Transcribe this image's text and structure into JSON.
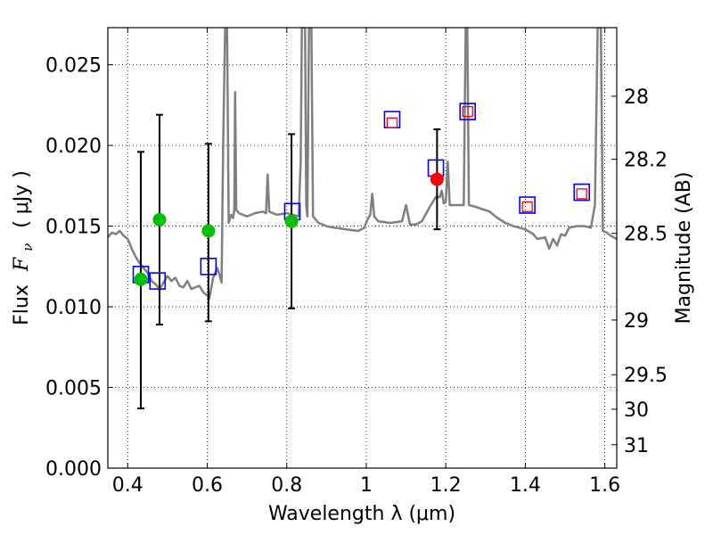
{
  "chart_data": {
    "type": "line",
    "title": "",
    "xlabel": "Wavelength  λ (μm)",
    "ylabel_parts": {
      "prefix": "Flux",
      "symbol": "F",
      "subscript": "ν",
      "unit": "( μJy )"
    },
    "y2label": "Magnitude (AB)",
    "xlim": [
      0.35,
      1.63
    ],
    "ylim": [
      0.0,
      0.0273
    ],
    "grid": true,
    "x_ticks": [
      {
        "value": 0.4,
        "label": "0.4"
      },
      {
        "value": 0.6,
        "label": "0.6"
      },
      {
        "value": 0.8,
        "label": "0.8"
      },
      {
        "value": 1.0,
        "label": "1"
      },
      {
        "value": 1.2,
        "label": "1.2"
      },
      {
        "value": 1.4,
        "label": "1.4"
      },
      {
        "value": 1.6,
        "label": "1.6"
      }
    ],
    "y_ticks": [
      {
        "value": 0.0,
        "label": "0.000"
      },
      {
        "value": 0.005,
        "label": "0.005"
      },
      {
        "value": 0.01,
        "label": "0.010"
      },
      {
        "value": 0.015,
        "label": "0.015"
      },
      {
        "value": 0.02,
        "label": "0.020"
      },
      {
        "value": 0.025,
        "label": "0.025"
      }
    ],
    "y2_ticks": [
      {
        "flux": 0.02305,
        "label": "28"
      },
      {
        "flux": 0.01914,
        "label": "28.2"
      },
      {
        "flux": 0.01455,
        "label": "28.5"
      },
      {
        "flux": 0.00918,
        "label": "29"
      },
      {
        "flux": 0.00579,
        "label": "29.5"
      },
      {
        "flux": 0.00365,
        "label": "30"
      },
      {
        "flux": 0.00145,
        "label": "31"
      }
    ],
    "series": [
      {
        "name": "model spectrum",
        "style": "line",
        "color": "#7f7f7f",
        "points": [
          [
            0.35,
            0.0143
          ],
          [
            0.36,
            0.0146
          ],
          [
            0.37,
            0.0145
          ],
          [
            0.38,
            0.0147
          ],
          [
            0.39,
            0.0144
          ],
          [
            0.4,
            0.0142
          ],
          [
            0.41,
            0.0136
          ],
          [
            0.42,
            0.0131
          ],
          [
            0.43,
            0.0127
          ],
          [
            0.44,
            0.0124
          ],
          [
            0.45,
            0.0121
          ],
          [
            0.46,
            0.0116
          ],
          [
            0.47,
            0.0114
          ],
          [
            0.48,
            0.0111
          ],
          [
            0.49,
            0.0115
          ],
          [
            0.5,
            0.0119
          ],
          [
            0.51,
            0.0116
          ],
          [
            0.52,
            0.0118
          ],
          [
            0.53,
            0.0113
          ],
          [
            0.54,
            0.0112
          ],
          [
            0.55,
            0.0116
          ],
          [
            0.56,
            0.0111
          ],
          [
            0.57,
            0.0112
          ],
          [
            0.58,
            0.0113
          ],
          [
            0.59,
            0.0109
          ],
          [
            0.6,
            0.0107
          ],
          [
            0.605,
            0.0105
          ],
          [
            0.615,
            0.0118
          ],
          [
            0.625,
            0.0124
          ],
          [
            0.632,
            0.0119
          ],
          [
            0.636,
            0.0115
          ],
          [
            0.64,
            0.02
          ],
          [
            0.645,
            0.0273
          ],
          [
            0.65,
            0.0273
          ],
          [
            0.654,
            0.0152
          ],
          [
            0.66,
            0.0157
          ],
          [
            0.665,
            0.0155
          ],
          [
            0.668,
            0.016
          ],
          [
            0.67,
            0.0233
          ],
          [
            0.673,
            0.016
          ],
          [
            0.68,
            0.0158
          ],
          [
            0.7,
            0.0156
          ],
          [
            0.72,
            0.0158
          ],
          [
            0.74,
            0.0159
          ],
          [
            0.748,
            0.0158
          ],
          [
            0.752,
            0.0182
          ],
          [
            0.756,
            0.0159
          ],
          [
            0.775,
            0.0157
          ],
          [
            0.8,
            0.0158
          ],
          [
            0.815,
            0.0157
          ],
          [
            0.83,
            0.0156
          ],
          [
            0.835,
            0.019
          ],
          [
            0.838,
            0.0273
          ],
          [
            0.846,
            0.0273
          ],
          [
            0.849,
            0.0163
          ],
          [
            0.852,
            0.0156
          ],
          [
            0.856,
            0.0273
          ],
          [
            0.862,
            0.0273
          ],
          [
            0.866,
            0.0156
          ],
          [
            0.88,
            0.0152
          ],
          [
            0.9,
            0.015
          ],
          [
            0.92,
            0.0149
          ],
          [
            0.95,
            0.0148
          ],
          [
            0.98,
            0.0147
          ],
          [
            0.995,
            0.0149
          ],
          [
            1.003,
            0.0154
          ],
          [
            1.01,
            0.0157
          ],
          [
            1.015,
            0.017
          ],
          [
            1.02,
            0.0156
          ],
          [
            1.03,
            0.0153
          ],
          [
            1.06,
            0.0152
          ],
          [
            1.09,
            0.0153
          ],
          [
            1.1,
            0.0163
          ],
          [
            1.11,
            0.0151
          ],
          [
            1.125,
            0.0151
          ],
          [
            1.14,
            0.0153
          ],
          [
            1.16,
            0.0162
          ],
          [
            1.175,
            0.0168
          ],
          [
            1.185,
            0.0168
          ],
          [
            1.19,
            0.0172
          ],
          [
            1.195,
            0.0164
          ],
          [
            1.2,
            0.0165
          ],
          [
            1.205,
            0.019
          ],
          [
            1.21,
            0.0163
          ],
          [
            1.23,
            0.0163
          ],
          [
            1.245,
            0.0163
          ],
          [
            1.25,
            0.0273
          ],
          [
            1.254,
            0.0273
          ],
          [
            1.258,
            0.0163
          ],
          [
            1.275,
            0.0162
          ],
          [
            1.31,
            0.0159
          ],
          [
            1.33,
            0.0155
          ],
          [
            1.35,
            0.0152
          ],
          [
            1.37,
            0.015
          ],
          [
            1.4,
            0.0148
          ],
          [
            1.42,
            0.0145
          ],
          [
            1.43,
            0.0142
          ],
          [
            1.45,
            0.0143
          ],
          [
            1.46,
            0.0136
          ],
          [
            1.47,
            0.0142
          ],
          [
            1.48,
            0.0138
          ],
          [
            1.49,
            0.0145
          ],
          [
            1.5,
            0.0144
          ],
          [
            1.51,
            0.0149
          ],
          [
            1.53,
            0.015
          ],
          [
            1.55,
            0.015
          ],
          [
            1.565,
            0.0149
          ],
          [
            1.575,
            0.0163
          ],
          [
            1.582,
            0.0273
          ],
          [
            1.59,
            0.0273
          ],
          [
            1.595,
            0.0147
          ],
          [
            1.605,
            0.0146
          ],
          [
            1.615,
            0.0144
          ],
          [
            1.63,
            0.0142
          ]
        ]
      },
      {
        "name": "observed photometry",
        "style": "errorbar",
        "color": "#00c000",
        "points": [
          {
            "x": 0.433,
            "y": 0.0117,
            "yerr_low": 0.0037,
            "yerr_high": 0.0196
          },
          {
            "x": 0.48,
            "y": 0.0154,
            "yerr_low": 0.0089,
            "yerr_high": 0.0219
          },
          {
            "x": 0.603,
            "y": 0.0147,
            "yerr_low": 0.0091,
            "yerr_high": 0.0201
          },
          {
            "x": 0.812,
            "y": 0.0153,
            "yerr_low": 0.0099,
            "yerr_high": 0.0207
          }
        ]
      },
      {
        "name": "observed photometry (red)",
        "style": "errorbar",
        "color": "#ff0000",
        "points": [
          {
            "x": 1.178,
            "y": 0.0179,
            "yerr_low": 0.0148,
            "yerr_high": 0.021
          }
        ]
      },
      {
        "name": "model photometry",
        "style": "square-open",
        "color": "#0000ff",
        "points": [
          [
            0.433,
            0.012
          ],
          [
            0.475,
            0.0116
          ],
          [
            0.603,
            0.0125
          ],
          [
            0.814,
            0.0159
          ],
          [
            1.065,
            0.0216
          ],
          [
            1.175,
            0.0186
          ],
          [
            1.255,
            0.0221
          ],
          [
            1.405,
            0.0163
          ],
          [
            1.542,
            0.0171
          ]
        ]
      },
      {
        "name": "upper limits",
        "style": "square-small",
        "color": "#ff0000",
        "points": [
          [
            1.065,
            0.0214
          ],
          [
            1.255,
            0.0221
          ],
          [
            1.405,
            0.0162
          ],
          [
            1.542,
            0.017
          ]
        ]
      }
    ]
  }
}
